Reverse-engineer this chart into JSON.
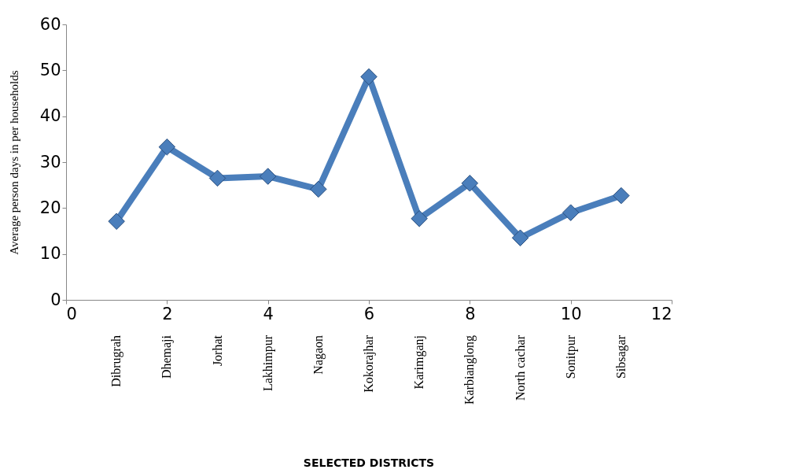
{
  "chart_data": {
    "type": "line",
    "x": [
      1,
      2,
      3,
      4,
      5,
      6,
      7,
      8,
      9,
      10,
      11
    ],
    "series": [
      {
        "color": "#4a7ebb",
        "values": [
          17.1,
          33.3,
          26.5,
          26.9,
          24.1,
          48.6,
          17.7,
          25.4,
          13.5,
          19.0,
          22.7
        ]
      }
    ],
    "xlim": [
      0,
      12
    ],
    "xticks": [
      0,
      2,
      4,
      6,
      8,
      10,
      12
    ],
    "ylim": [
      0,
      60
    ],
    "yticks": [
      0,
      10,
      20,
      30,
      40,
      50,
      60
    ],
    "ylabel": "Average person days in per households",
    "marker": "diamond",
    "line_style": "solid",
    "grid": false,
    "annotations": [
      "Dibrugrah",
      "Dhemaji",
      "Jorhat",
      "Lakhimpur",
      "Nagaon",
      "Kokorajhar",
      "Karimganj",
      "Karbianglong",
      "North cachar",
      "Sonitpur",
      "Sibsagar",
      "SELECTED DISTRICTS"
    ]
  }
}
